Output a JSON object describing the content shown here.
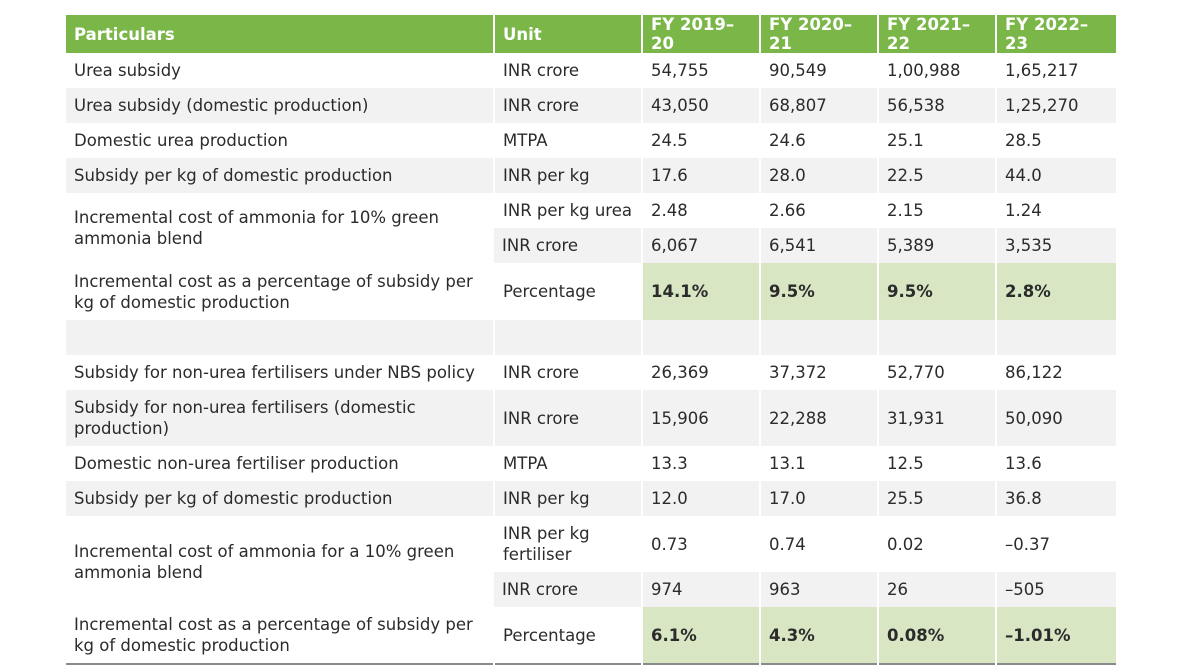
{
  "headers": [
    "Particulars",
    "Unit",
    "FY 2019–20",
    "FY 2020–21",
    "FY 2021–22",
    "FY 2022–23"
  ],
  "rows": [
    {
      "particular": "Urea subsidy",
      "unit": "INR crore",
      "values": [
        "54,755",
        "90,549",
        "1,00,988",
        "1,65,217"
      ]
    },
    {
      "particular": "Urea subsidy (domestic production)",
      "unit": "INR crore",
      "values": [
        "43,050",
        "68,807",
        "56,538",
        "1,25,270"
      ]
    },
    {
      "particular": "Domestic urea production",
      "unit": "MTPA",
      "values": [
        "24.5",
        "24.6",
        "25.1",
        "28.5"
      ]
    },
    {
      "particular": "Subsidy per kg of domestic production",
      "unit": "INR per kg",
      "values": [
        "17.6",
        "28.0",
        "22.5",
        "44.0"
      ]
    },
    {
      "particular": "Incremental cost of ammonia for 10% green ammonia blend",
      "unit": "INR per kg urea",
      "values": [
        "2.48",
        "2.66",
        "2.15",
        "1.24"
      ]
    },
    {
      "particular": "",
      "unit": "INR crore",
      "values": [
        "6,067",
        "6,541",
        "5,389",
        "3,535"
      ]
    },
    {
      "particular": "Incremental cost as a percentage of subsidy per kg of domestic production",
      "unit": "Percentage",
      "values": [
        "14.1%",
        "9.5%",
        "9.5%",
        "2.8%"
      ]
    },
    {
      "particular": "Subsidy for non-urea fertilisers under NBS policy",
      "unit": "INR crore",
      "values": [
        "26,369",
        "37,372",
        "52,770",
        "86,122"
      ]
    },
    {
      "particular": "Subsidy for non-urea fertilisers (domestic production)",
      "unit": "INR crore",
      "values": [
        "15,906",
        "22,288",
        "31,931",
        "50,090"
      ]
    },
    {
      "particular": "Domestic non-urea fertiliser production",
      "unit": "MTPA",
      "values": [
        "13.3",
        "13.1",
        "12.5",
        "13.6"
      ]
    },
    {
      "particular": "Subsidy per kg of domestic production",
      "unit": "INR per kg",
      "values": [
        "12.0",
        "17.0",
        "25.5",
        "36.8"
      ]
    },
    {
      "particular": "Incremental cost of ammonia for a 10% green ammonia blend",
      "unit": "INR per kg fertiliser",
      "values": [
        "0.73",
        "0.74",
        "0.02",
        "–0.37"
      ]
    },
    {
      "particular": "",
      "unit": "INR crore",
      "values": [
        "974",
        "963",
        "26",
        "–505"
      ]
    },
    {
      "particular": "Incremental cost as a percentage of subsidy per kg of domestic production",
      "unit": "Percentage",
      "values": [
        "6.1%",
        "4.3%",
        "0.08%",
        "–1.01%"
      ]
    }
  ],
  "colors": {
    "header_bg": "#7ab648",
    "highlight_bg": "#d8e6c3",
    "alt_row_bg": "#f2f2f2"
  }
}
